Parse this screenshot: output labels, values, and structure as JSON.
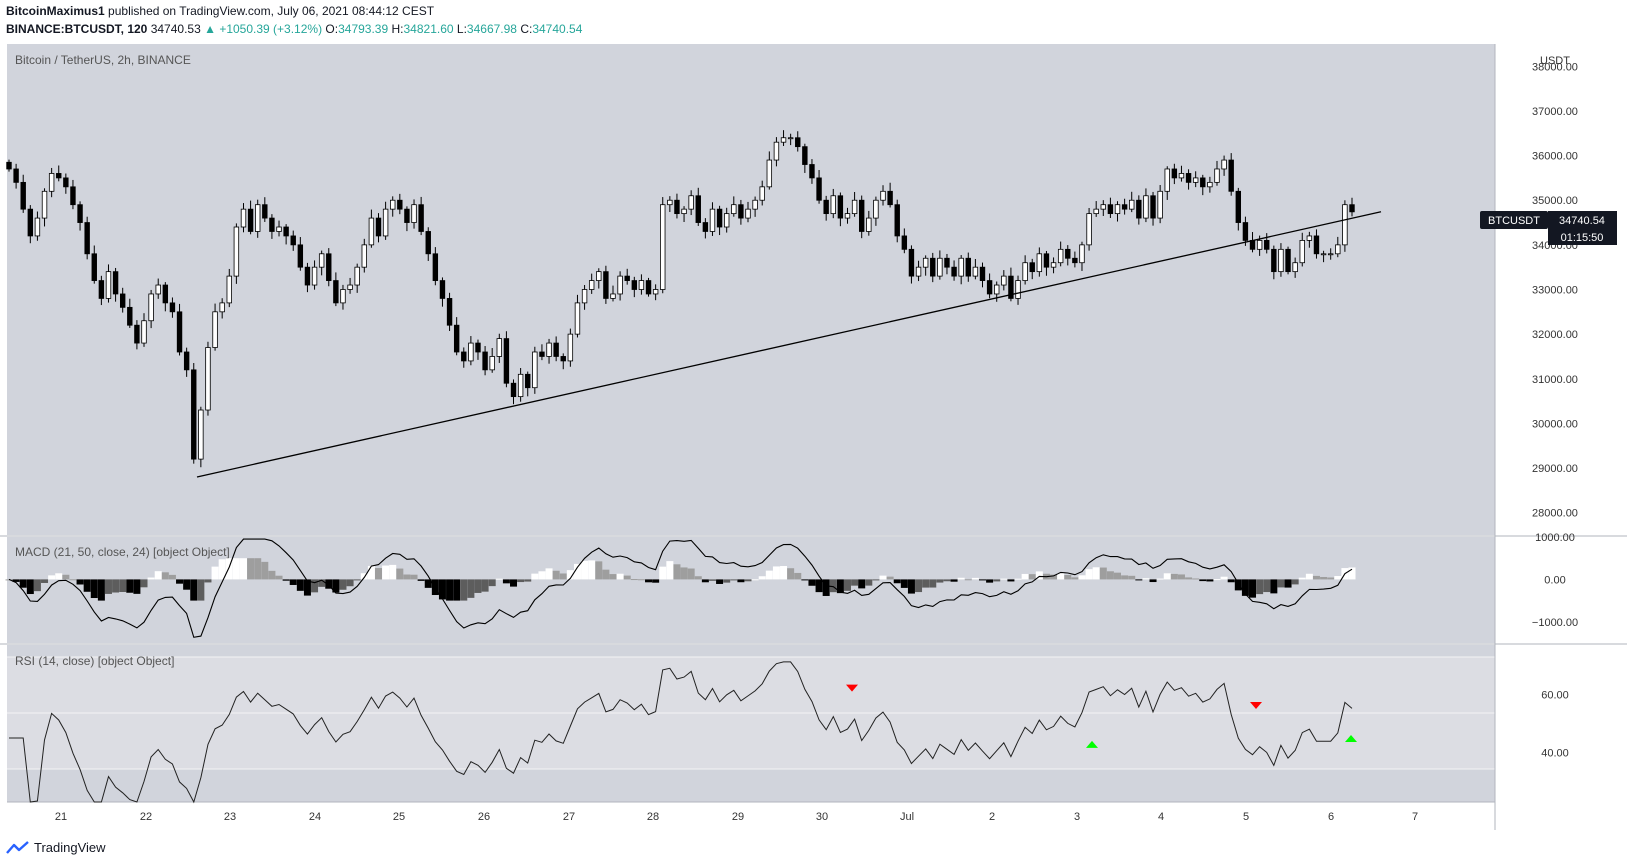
{
  "header": {
    "author": "BitcoinMaximus1",
    "published_text": "published on TradingView.com, July 06, 2021 08:44:12 CEST",
    "symbol_interval": "BINANCE:BTCUSDT, 120",
    "last_price": "34740.53",
    "change": "▲ +1050.39 (+3.12%)",
    "o_label": "O:",
    "o_value": "34793.39",
    "h_label": "H:",
    "h_value": "34821.60",
    "l_label": "L:",
    "l_value": "34667.98",
    "c_label": "C:",
    "c_value": "34740.54"
  },
  "footer": {
    "brand": "TradingView",
    "logo_icon": "tradingview-logo-icon"
  },
  "colors": {
    "pane_bg": "#d1d4dc",
    "axis_bg": "#ffffff",
    "candle_up": "#ffffff",
    "candle_down": "#000000",
    "rsi_band": "#dcdde3",
    "arrow_red": "#ff0000",
    "arrow_green": "#00ff00"
  },
  "chart_data": [
    {
      "type": "candlestick",
      "title": "Bitcoin / TetherUS, 2h, BINANCE",
      "axis_currency": "USDT",
      "ylim": [
        27500,
        38500
      ],
      "yticks": [
        28000,
        29000,
        30000,
        31000,
        32000,
        33000,
        34000,
        35000,
        36000,
        37000,
        38000
      ],
      "ytick_labels": [
        "28000.00",
        "29000.00",
        "30000.00",
        "31000.00",
        "32000.00",
        "33000.00",
        "34000.00",
        "35000.00",
        "36000.00",
        "37000.00",
        "38000.00"
      ],
      "x_tick_labels": [
        "21",
        "22",
        "23",
        "24",
        "25",
        "26",
        "27",
        "28",
        "29",
        "30",
        "Jul",
        "2",
        "3",
        "4",
        "5",
        "6",
        "7"
      ],
      "price_label": {
        "symbol": "BTCUSDT",
        "price": "34740.54",
        "countdown": "01:15:50"
      },
      "close_series": [
        35700,
        35400,
        34800,
        34200,
        34600,
        35200,
        35600,
        35500,
        35300,
        34900,
        34500,
        33800,
        33200,
        32800,
        33400,
        32900,
        32600,
        32200,
        31800,
        32300,
        32900,
        33100,
        32700,
        32500,
        31600,
        31200,
        29200,
        30300,
        31700,
        32500,
        32700,
        33300,
        34400,
        34800,
        34300,
        34900,
        34600,
        34300,
        34400,
        34200,
        34000,
        33500,
        33100,
        33500,
        33800,
        33200,
        32700,
        33000,
        33100,
        33500,
        34000,
        34600,
        34200,
        34800,
        35000,
        34800,
        34500,
        34900,
        34300,
        33800,
        33200,
        32800,
        32200,
        31600,
        31400,
        31800,
        31600,
        31200,
        31500,
        31900,
        30900,
        30600,
        31100,
        30800,
        31600,
        31500,
        31800,
        31500,
        31400,
        32000,
        32700,
        33000,
        33200,
        33400,
        32800,
        32900,
        33300,
        33200,
        33000,
        33200,
        32900,
        33000,
        34900,
        35000,
        34700,
        34800,
        35100,
        34500,
        34300,
        34800,
        34400,
        34700,
        34900,
        34600,
        34800,
        35000,
        35300,
        35900,
        36300,
        36400,
        36400,
        36200,
        35800,
        35500,
        35000,
        34700,
        35100,
        34600,
        34700,
        35000,
        34300,
        34600,
        35000,
        35200,
        34900,
        34200,
        33900,
        33300,
        33500,
        33700,
        33300,
        33700,
        33500,
        33300,
        33700,
        33300,
        33500,
        33200,
        32900,
        33100,
        33300,
        32800,
        33200,
        33600,
        33400,
        33800,
        33500,
        33600,
        33900,
        33700,
        33600,
        34000,
        34700,
        34800,
        34900,
        34700,
        34900,
        34800,
        35000,
        34600,
        35100,
        34600,
        35200,
        35700,
        35500,
        35600,
        35400,
        35500,
        35300,
        35400,
        35700,
        35900,
        35200,
        34500,
        34100,
        33900,
        34100,
        33900,
        33400,
        33900,
        33400,
        33600,
        34100,
        34200,
        33800,
        33800,
        33800,
        34000,
        34900,
        34740
      ],
      "trendline": {
        "start": {
          "x": "22",
          "y": 28800
        },
        "end": {
          "x": "6",
          "y": 34450
        }
      }
    },
    {
      "type": "histogram_line",
      "title": "MACD (21, 50, close, 24) [object Object]",
      "ylim": [
        -1500,
        1000
      ],
      "yticks": [
        1000,
        0,
        -1000
      ],
      "ytick_labels": [
        "1000.00",
        "0.00",
        "−1000.00"
      ]
    },
    {
      "type": "line",
      "title": "RSI (14, close) [object Object]",
      "ylim": [
        23,
        77
      ],
      "yticks": [
        60,
        40
      ],
      "ytick_labels": [
        "60.00",
        "40.00"
      ],
      "band": [
        30,
        70
      ],
      "midline": 50,
      "signals": [
        {
          "x": "30",
          "y": 62,
          "dir": "down",
          "color": "red"
        },
        {
          "x": "3",
          "y": 43,
          "dir": "up",
          "color": "green"
        },
        {
          "x": "5",
          "y": 56,
          "dir": "down",
          "color": "red"
        },
        {
          "x": "6",
          "y": 45,
          "dir": "up",
          "color": "green"
        }
      ]
    }
  ]
}
